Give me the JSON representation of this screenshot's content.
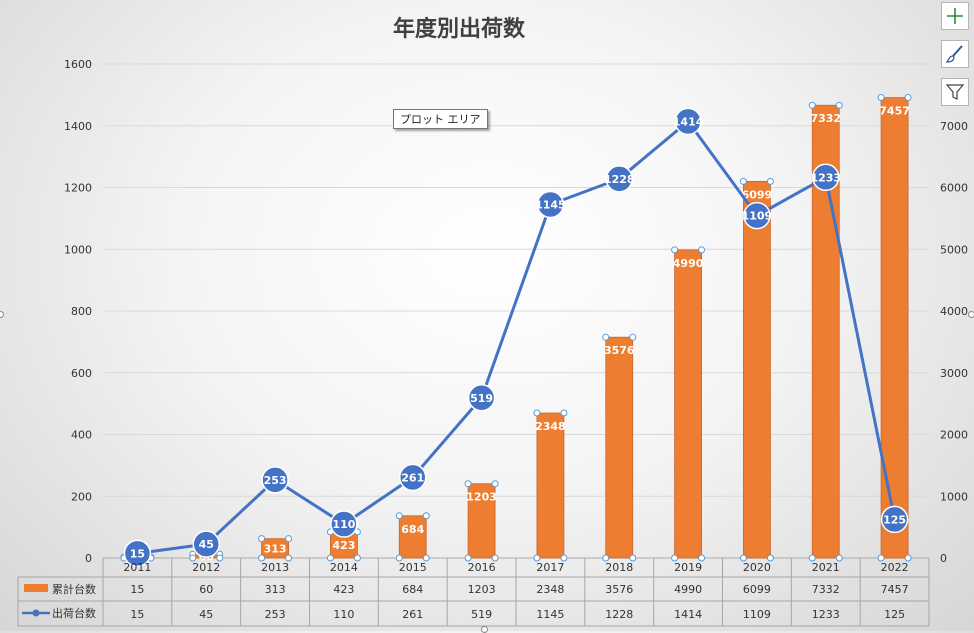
{
  "chart_data": {
    "type": "bar+line",
    "title": "年度別出荷数",
    "categories": [
      "2011",
      "2012",
      "2013",
      "2014",
      "2015",
      "2016",
      "2017",
      "2018",
      "2019",
      "2020",
      "2021",
      "2022"
    ],
    "series": [
      {
        "name": "累計台数",
        "type": "bar",
        "axis": "secondary",
        "color": "#ed7d31",
        "values": [
          15,
          60,
          313,
          423,
          684,
          1203,
          2348,
          3576,
          4990,
          6099,
          7332,
          7457
        ]
      },
      {
        "name": "出荷台数",
        "type": "line",
        "axis": "primary",
        "color": "#4472c4",
        "values": [
          15,
          45,
          253,
          110,
          261,
          519,
          1145,
          1228,
          1414,
          1109,
          1233,
          125
        ]
      }
    ],
    "y_primary": {
      "min": 0,
      "max": 1600,
      "ticks": [
        "0",
        "200",
        "400",
        "600",
        "800",
        "1000",
        "1200",
        "1400",
        "1600"
      ]
    },
    "y_secondary": {
      "min": 0,
      "max": 8000,
      "ticks": [
        "0",
        "1000",
        "2000",
        "3000",
        "4000",
        "5000",
        "6000",
        "7000"
      ]
    },
    "grid": true,
    "legend": "data-table",
    "data_table": true
  },
  "ui": {
    "tooltip": "プロット エリア",
    "buttons": {
      "add_element": "plus-icon",
      "chart_styles": "brush-icon",
      "chart_filters": "filter-icon"
    }
  }
}
